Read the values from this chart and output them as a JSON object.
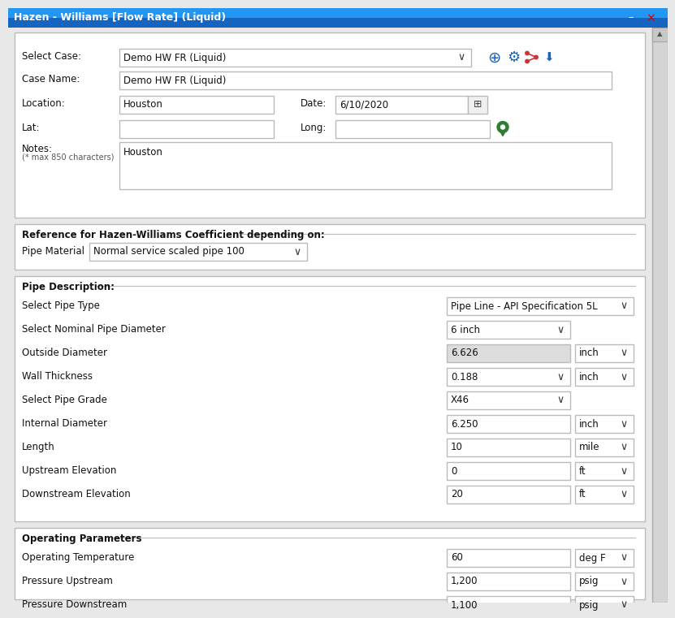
{
  "title": "Hazen - Williams [Flow Rate] (Liquid)",
  "title_bg_top": "#1E88E5",
  "title_bg_bot": "#1565C0",
  "title_text_color": "#FFFFFF",
  "bg_color": "#E8E8E8",
  "panel_bg": "#FFFFFF",
  "border_color": "#BBBBBB",
  "label_color": "#111111",
  "input_bg": "#FFFFFF",
  "input_disabled_bg": "#DCDCDC",
  "select_case_label": "Select Case:",
  "select_case_value": "Demo HW FR (Liquid)",
  "case_name_label": "Case Name:",
  "case_name_value": "Demo HW FR (Liquid)",
  "location_label": "Location:",
  "location_value": "Houston",
  "date_label": "Date:",
  "date_value": "6/10/2020",
  "lat_label": "Lat:",
  "long_label": "Long:",
  "notes_label": "Notes:",
  "notes_sub": "(* max 850 characters)",
  "notes_value": "Houston",
  "ref_header": "Reference for Hazen-Williams Coefficient depending on:",
  "pipe_material_label": "Pipe Material",
  "pipe_material_value": "Normal service scaled pipe 100",
  "pipe_desc_header": "Pipe Description:",
  "pipe_type_label": "Select Pipe Type",
  "pipe_type_value": "Pipe Line - API Specification 5L",
  "nominal_diam_label": "Select Nominal Pipe Diameter",
  "nominal_diam_value": "6 inch",
  "outside_diam_label": "Outside Diameter",
  "outside_diam_value": "6.626",
  "outside_diam_unit": "inch",
  "wall_thick_label": "Wall Thickness",
  "wall_thick_value": "0.188",
  "wall_thick_unit": "inch",
  "pipe_grade_label": "Select Pipe Grade",
  "pipe_grade_value": "X46",
  "internal_diam_label": "Internal Diameter",
  "internal_diam_value": "6.250",
  "internal_diam_unit": "inch",
  "length_label": "Length",
  "length_value": "10",
  "length_unit": "mile",
  "upstream_elev_label": "Upstream Elevation",
  "upstream_elev_value": "0",
  "upstream_elev_unit": "ft",
  "downstream_elev_label": "Downstream Elevation",
  "downstream_elev_value": "20",
  "downstream_elev_unit": "ft",
  "op_params_header": "Operating Parameters",
  "op_temp_label": "Operating Temperature",
  "op_temp_value": "60",
  "op_temp_unit": "deg F",
  "pressure_up_label": "Pressure Upstream",
  "pressure_up_value": "1,200",
  "pressure_up_unit": "psig",
  "pressure_down_label": "Pressure Downstream",
  "pressure_down_value": "1,100",
  "pressure_down_unit": "psig",
  "icon_plus_color": "#1565C0",
  "icon_gear_color": "#1565C0",
  "icon_share_color": "#CC3333",
  "icon_download_color": "#1565C0",
  "pin_color": "#2E7D32",
  "scrollbar_bg": "#D0D0D0",
  "scrollbar_thumb": "#AAAAAA"
}
